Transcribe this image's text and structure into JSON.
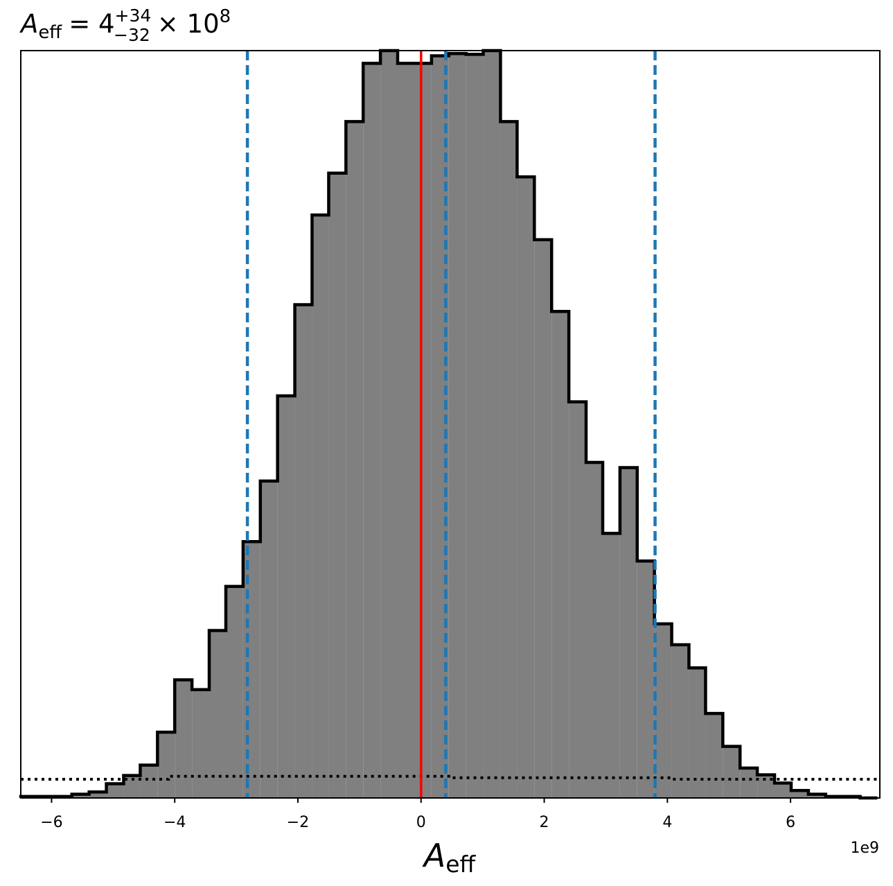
{
  "chart_data": {
    "type": "histogram",
    "title": {
      "symbol": "A",
      "symbol_sub": "eff",
      "equals": "= 4",
      "sup": "+34",
      "sub": "−32",
      "tail": "× 10",
      "exp": "8"
    },
    "xlabel": {
      "symbol": "A",
      "sub": "eff"
    },
    "x_offset_label": "1e9",
    "x_scale": 1000000000,
    "xlim": [
      -6.5,
      7.45
    ],
    "ylim": [
      0,
      1.0
    ],
    "y_axis_ticks": "none",
    "x_ticks": [
      {
        "value": -6,
        "label": "−6"
      },
      {
        "value": -4,
        "label": "−4"
      },
      {
        "value": -2,
        "label": "−2"
      },
      {
        "value": 0,
        "label": "0"
      },
      {
        "value": 2,
        "label": "2"
      },
      {
        "value": 4,
        "label": "4"
      },
      {
        "value": 6,
        "label": "6"
      }
    ],
    "bin_edges": [
      -6.5,
      -6.22,
      -5.95,
      -5.67,
      -5.39,
      -5.11,
      -4.83,
      -4.56,
      -4.28,
      -4.0,
      -3.72,
      -3.44,
      -3.17,
      -2.89,
      -2.61,
      -2.33,
      -2.05,
      -1.77,
      -1.5,
      -1.22,
      -0.94,
      -0.66,
      -0.38,
      -0.11,
      0.17,
      0.45,
      0.73,
      1.01,
      1.29,
      1.56,
      1.84,
      2.12,
      2.4,
      2.68,
      2.95,
      3.23,
      3.51,
      3.79,
      4.07,
      4.35,
      4.62,
      4.9,
      5.18,
      5.46,
      5.74,
      6.01,
      6.29,
      6.57,
      6.85,
      7.13,
      7.41
    ],
    "counts": [
      0.002,
      0.002,
      0.002,
      0.005,
      0.008,
      0.019,
      0.03,
      0.044,
      0.088,
      0.158,
      0.145,
      0.224,
      0.283,
      0.343,
      0.424,
      0.538,
      0.66,
      0.78,
      0.836,
      0.905,
      0.983,
      1.005,
      0.983,
      0.983,
      0.993,
      0.996,
      0.995,
      1.045,
      0.905,
      0.831,
      0.747,
      0.651,
      0.53,
      0.449,
      0.354,
      0.442,
      0.317,
      0.233,
      0.205,
      0.174,
      0.113,
      0.069,
      0.04,
      0.031,
      0.02,
      0.01,
      0.005,
      0.002,
      0.002,
      0.0
    ],
    "hist_color": "#808080",
    "hist_edge_color": "#000000",
    "vlines": [
      {
        "value": 0.0,
        "color": "#ff0000",
        "style": "solid"
      },
      {
        "value": 0.4,
        "color": "#1f77b4",
        "style": "dashed"
      },
      {
        "value": -2.82,
        "color": "#1f77b4",
        "style": "dashed"
      },
      {
        "value": 3.8,
        "color": "#1f77b4",
        "style": "dashed"
      }
    ],
    "prior_line": {
      "style": "dotted",
      "color": "#000000",
      "x": [
        -6.5,
        -4.1,
        -4.1,
        0.45,
        0.45,
        4.07,
        4.07,
        7.45
      ],
      "y": [
        0.025,
        0.025,
        0.029,
        0.029,
        0.027,
        0.027,
        0.025,
        0.025
      ]
    }
  }
}
